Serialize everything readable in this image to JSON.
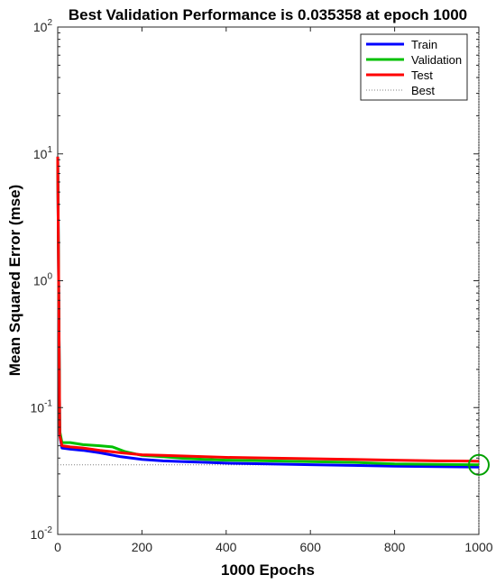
{
  "chart_data": {
    "type": "line",
    "title": "Best Validation Performance is 0.035358 at epoch 1000",
    "xlabel": "1000 Epochs",
    "ylabel": "Mean Squared Error  (mse)",
    "xlim": [
      0,
      1000
    ],
    "ylim": [
      0.01,
      100
    ],
    "yscale": "log",
    "xticks": [
      0,
      200,
      400,
      600,
      800,
      1000
    ],
    "xtick_labels": [
      "0",
      "200",
      "400",
      "600",
      "800",
      "1000"
    ],
    "yticks": [
      0.01,
      0.1,
      1,
      10,
      100
    ],
    "ytick_labels": [
      {
        "base": "10",
        "exp": "-2"
      },
      {
        "base": "10",
        "exp": "-1"
      },
      {
        "base": "10",
        "exp": "0"
      },
      {
        "base": "10",
        "exp": "1"
      },
      {
        "base": "10",
        "exp": "2"
      }
    ],
    "grid": false,
    "legend_position": "top-right",
    "series": [
      {
        "name": "Train",
        "color": "#0000ff",
        "x": [
          0,
          5,
          10,
          30,
          60,
          100,
          150,
          200,
          250,
          300,
          350,
          400,
          500,
          600,
          700,
          800,
          900,
          1000
        ],
        "y": [
          9.5,
          0.06,
          0.048,
          0.047,
          0.046,
          0.044,
          0.041,
          0.039,
          0.038,
          0.0375,
          0.037,
          0.0365,
          0.036,
          0.0355,
          0.035,
          0.0345,
          0.0342,
          0.034
        ]
      },
      {
        "name": "Validation",
        "color": "#00c000",
        "x": [
          0,
          5,
          10,
          30,
          60,
          100,
          130,
          160,
          200,
          250,
          300,
          350,
          400,
          500,
          600,
          700,
          800,
          900,
          1000
        ],
        "y": [
          9.5,
          0.065,
          0.053,
          0.053,
          0.051,
          0.05,
          0.049,
          0.045,
          0.042,
          0.041,
          0.0398,
          0.039,
          0.0385,
          0.038,
          0.0375,
          0.037,
          0.036,
          0.0357,
          0.035358
        ]
      },
      {
        "name": "Test",
        "color": "#ff0000",
        "x": [
          0,
          5,
          10,
          30,
          60,
          100,
          150,
          200,
          250,
          300,
          350,
          400,
          500,
          600,
          700,
          800,
          900,
          1000
        ],
        "y": [
          9.5,
          0.06,
          0.05,
          0.049,
          0.048,
          0.046,
          0.044,
          0.0425,
          0.042,
          0.0415,
          0.041,
          0.0405,
          0.04,
          0.0395,
          0.039,
          0.0385,
          0.038,
          0.0378
        ]
      },
      {
        "name": "Best",
        "color": "#808080",
        "style": "dotted",
        "horizontal_value": 0.035358,
        "vertical_epoch": 1000
      }
    ],
    "best_point": {
      "x": 1000,
      "y": 0.035358,
      "marker": "circle",
      "color": "#00a000"
    }
  }
}
